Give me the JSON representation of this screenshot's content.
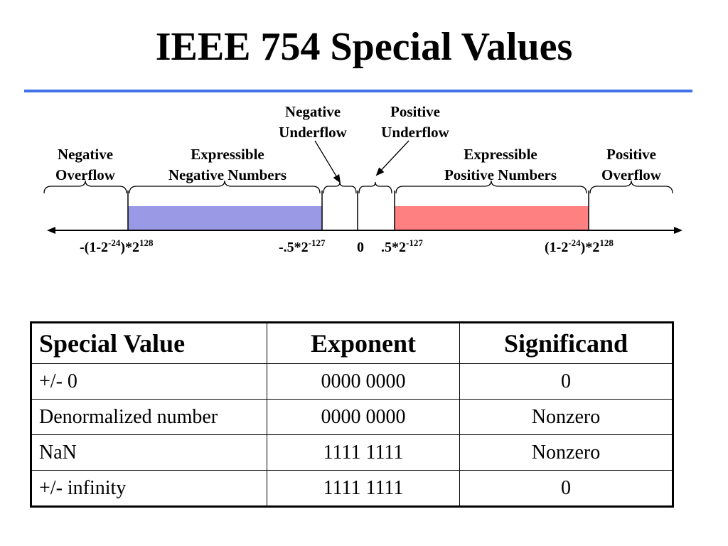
{
  "title": "IEEE 754 Special Values",
  "colors": {
    "rule": "#3f72e8",
    "negative_range": "#9999e6",
    "positive_range": "#ff8080"
  },
  "diagram": {
    "regions": {
      "negative_overflow": [
        "Negative",
        "Overflow"
      ],
      "expressible_negative": [
        "Expressible",
        "Negative Numbers"
      ],
      "negative_underflow": [
        "Negative",
        "Underflow"
      ],
      "positive_underflow": [
        "Positive",
        "Underflow"
      ],
      "expressible_positive": [
        "Expressible",
        "Positive Numbers"
      ],
      "positive_overflow": [
        "Positive",
        "Overflow"
      ]
    },
    "ticks": {
      "neg_max": {
        "base": "-(1-2",
        "exp1": "-24",
        "mid": ")*2",
        "exp2": "128"
      },
      "neg_min": {
        "base": "-.5*2",
        "exp": "-127"
      },
      "zero": "0",
      "pos_min": {
        "base": ".5*2",
        "exp": "-127"
      },
      "pos_max": {
        "base": "(1-2",
        "exp1": "-24",
        "mid": ")*2",
        "exp2": "128"
      }
    }
  },
  "table": {
    "headers": [
      "Special Value",
      "Exponent",
      "Significand"
    ],
    "rows": [
      [
        "+/- 0",
        "0000 0000",
        "0"
      ],
      [
        "Denormalized number",
        "0000 0000",
        "Nonzero"
      ],
      [
        "NaN",
        "1111 1111",
        "Nonzero"
      ],
      [
        "+/- infinity",
        "1111 1111",
        "0"
      ]
    ]
  }
}
